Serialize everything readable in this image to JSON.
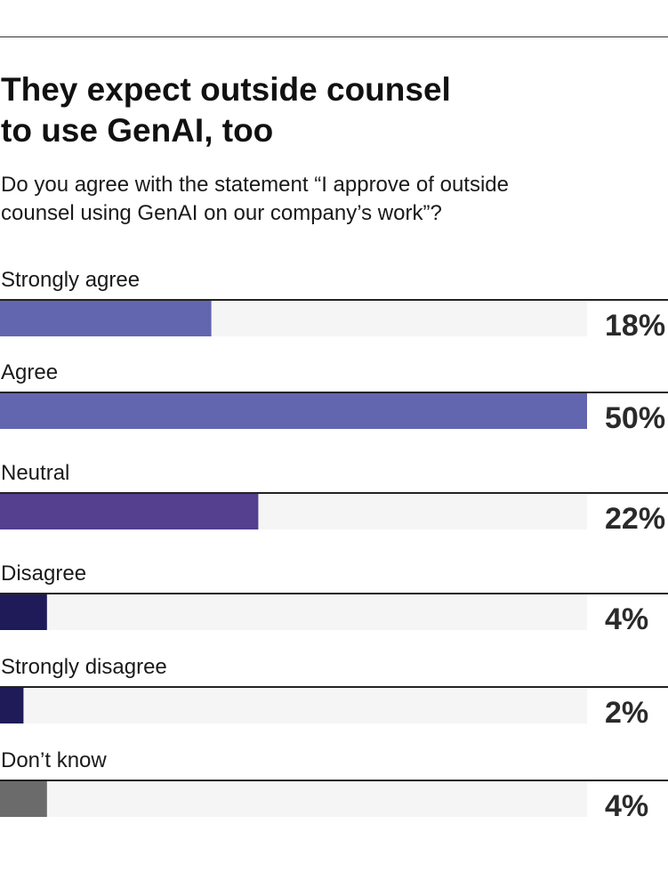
{
  "title_lines": [
    "They expect outside counsel",
    "to use GenAI, too"
  ],
  "subtitle_lines": [
    "Do you agree with the statement “I approve of outside",
    "counsel using GenAI on our company’s work”?"
  ],
  "chart_data": {
    "type": "bar",
    "orientation": "horizontal",
    "title": "They expect outside counsel to use GenAI, too",
    "subtitle": "Do you agree with the statement “I approve of outside counsel using GenAI on our company’s work”?",
    "categories": [
      "Strongly agree",
      "Agree",
      "Neutral",
      "Disagree",
      "Strongly disagree",
      "Don’t know"
    ],
    "values": [
      18,
      50,
      22,
      4,
      2,
      4
    ],
    "value_labels": [
      "18%",
      "50%",
      "22%",
      "4%",
      "2%",
      "4%"
    ],
    "xlim": [
      0,
      50
    ],
    "unit": "%",
    "grid": false,
    "legend": "none",
    "colors": [
      "#6266ae",
      "#6266ae",
      "#553f8f",
      "#1e1b58",
      "#1e1b58",
      "#6b6b6b"
    ],
    "track_color": "#f5f5f5",
    "rule_color": "#222222"
  }
}
